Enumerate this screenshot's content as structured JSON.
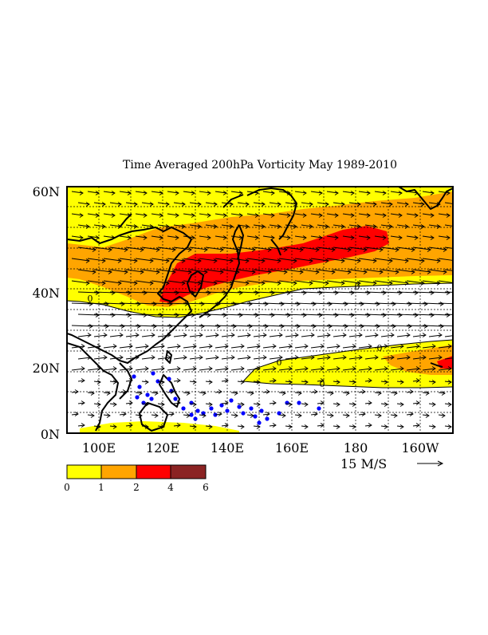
{
  "title": "Time Averaged 200hPa Vorticity  May 1989-2010",
  "y_ticks": [
    "60N",
    "40N",
    "20N",
    "0N"
  ],
  "x_ticks": [
    "100E",
    "120E",
    "140E",
    "160E",
    "180",
    "160W"
  ],
  "vector_reference": {
    "label": "15 M/S",
    "arrow": "→"
  },
  "contour_labels": [
    "0",
    "0",
    "0",
    "0",
    "0"
  ],
  "colorbar": {
    "ticks": [
      "0",
      "1",
      "2",
      "4",
      "6"
    ],
    "colors": [
      "#ffff00",
      "#ffa500",
      "#ff0000",
      "#8b2323"
    ]
  },
  "map_colors": {
    "level_0_1": "#ffff00",
    "level_1_2": "#ffa500",
    "level_2_4": "#ff0000",
    "level_4_6": "#8b2323",
    "markers": "#0000ff",
    "coast": "#000000"
  }
}
